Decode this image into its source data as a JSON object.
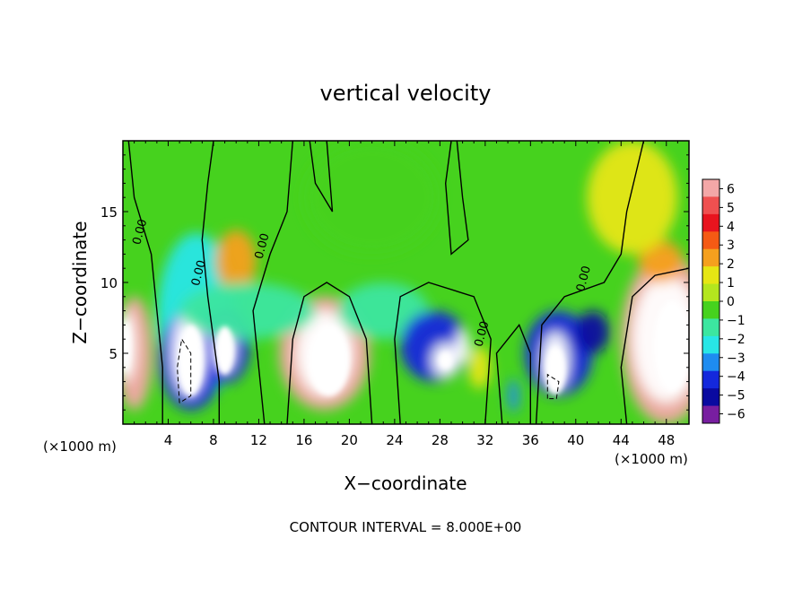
{
  "chart_data": {
    "type": "heatmap",
    "title": "vertical velocity",
    "xlabel": "X−coordinate",
    "ylabel": "Z−coordinate",
    "x_unit_left": "(×1000 m)",
    "x_unit_right": "(×1000 m)",
    "xlim": [
      0,
      50
    ],
    "ylim": [
      0,
      20
    ],
    "xticks": [
      4,
      8,
      12,
      16,
      20,
      24,
      28,
      32,
      36,
      40,
      44,
      48
    ],
    "yticks": [
      5,
      10,
      15
    ],
    "colorbar": {
      "ticks": [
        "6",
        "5",
        "4",
        "3",
        "2",
        "1",
        "0",
        "−1",
        "−2",
        "−3",
        "−4",
        "−5",
        "−6"
      ],
      "colors": [
        "#f3a7a7",
        "#ef5050",
        "#e8141e",
        "#f55a14",
        "#f5a01e",
        "#e6e614",
        "#b4e61e",
        "#46d21e",
        "#3ce6a0",
        "#28e6e6",
        "#1e8cf0",
        "#1428dc",
        "#0a0aa0",
        "#781ea0"
      ]
    },
    "contour_labels": [
      {
        "text": "0.00",
        "x": 1.8,
        "z": 13.5
      },
      {
        "text": "0.00",
        "x": 7.0,
        "z": 10.6
      },
      {
        "text": "0.00",
        "x": 12.6,
        "z": 12.5
      },
      {
        "text": "0.00",
        "x": 32.0,
        "z": 6.3
      },
      {
        "text": "0.00",
        "x": 41.0,
        "z": 10.2
      }
    ],
    "cells": [
      {
        "x": 1.0,
        "z": 5.0,
        "rx": 1.6,
        "rz": 4.0,
        "v": 6
      },
      {
        "x": 0.3,
        "z": 5.5,
        "rx": 0.8,
        "rz": 2.5,
        "v": 9
      },
      {
        "x": 6.5,
        "z": 7.5,
        "rx": 3.5,
        "rz": 6.0,
        "v": -3
      },
      {
        "x": 6.0,
        "z": 4.5,
        "rx": 2.8,
        "rz": 3.5,
        "v": -5
      },
      {
        "x": 5.8,
        "z": 5.0,
        "rx": 1.5,
        "rz": 3.0,
        "v": -7
      },
      {
        "x": 9.2,
        "z": 5.5,
        "rx": 2.0,
        "rz": 2.6,
        "v": -5
      },
      {
        "x": 9.0,
        "z": 5.5,
        "rx": 0.9,
        "rz": 1.8,
        "v": -7
      },
      {
        "x": 10.0,
        "z": 11.5,
        "rx": 1.8,
        "rz": 2.2,
        "v": 2.5
      },
      {
        "x": 17.8,
        "z": 5.0,
        "rx": 4.0,
        "rz": 4.0,
        "v": 6
      },
      {
        "x": 17.8,
        "z": 5.0,
        "rx": 2.5,
        "rz": 3.0,
        "v": 8
      },
      {
        "x": 11.0,
        "z": 8.0,
        "rx": 6.0,
        "rz": 2.0,
        "v": -1.8
      },
      {
        "x": 23.0,
        "z": 8.0,
        "rx": 4.0,
        "rz": 2.0,
        "v": -1.8
      },
      {
        "x": 27.5,
        "z": 5.5,
        "rx": 3.0,
        "rz": 2.5,
        "v": -4.5
      },
      {
        "x": 28.5,
        "z": 4.5,
        "rx": 1.2,
        "rz": 1.2,
        "v": -7
      },
      {
        "x": 30.0,
        "z": 5.5,
        "rx": 0.6,
        "rz": 1.2,
        "v": -7
      },
      {
        "x": 31.5,
        "z": 4.0,
        "rx": 1.0,
        "rz": 1.5,
        "v": 1.5
      },
      {
        "x": 34.5,
        "z": 2.0,
        "rx": 0.5,
        "rz": 1.2,
        "v": -4
      },
      {
        "x": 38.5,
        "z": 5.0,
        "rx": 3.0,
        "rz": 3.0,
        "v": -5
      },
      {
        "x": 38.2,
        "z": 4.5,
        "rx": 1.2,
        "rz": 2.0,
        "v": -7
      },
      {
        "x": 41.5,
        "z": 6.5,
        "rx": 1.5,
        "rz": 1.5,
        "v": -6
      },
      {
        "x": 48.0,
        "z": 6.0,
        "rx": 4.0,
        "rz": 6.0,
        "v": 6
      },
      {
        "x": 48.0,
        "z": 6.0,
        "rx": 3.0,
        "rz": 4.5,
        "v": 8
      },
      {
        "x": 47.5,
        "z": 11.5,
        "rx": 2.0,
        "rz": 1.5,
        "v": 2.5
      },
      {
        "x": 45.0,
        "z": 16.0,
        "rx": 4.0,
        "rz": 4.0,
        "v": 0.8
      },
      {
        "x": 22.0,
        "z": 16.0,
        "rx": 6.0,
        "rz": 4.0,
        "v": -1.0
      }
    ],
    "contour_segments": [
      [
        [
          3.5,
          0
        ],
        [
          3.5,
          4
        ],
        [
          3.0,
          8
        ],
        [
          2.5,
          12
        ],
        [
          1.0,
          16
        ],
        [
          0.5,
          20
        ]
      ],
      [
        [
          8.5,
          0
        ],
        [
          8.5,
          3
        ],
        [
          8.0,
          6
        ],
        [
          7.5,
          9
        ],
        [
          7.0,
          13
        ],
        [
          7.5,
          17
        ],
        [
          8.0,
          20
        ]
      ],
      [
        [
          12.5,
          0
        ],
        [
          12.0,
          4
        ],
        [
          11.5,
          8
        ],
        [
          13.0,
          12
        ],
        [
          14.5,
          15
        ],
        [
          15.0,
          20
        ]
      ],
      [
        [
          14.5,
          0
        ],
        [
          15.0,
          6
        ],
        [
          16.0,
          9
        ],
        [
          18.0,
          10
        ],
        [
          20.0,
          9
        ],
        [
          21.5,
          6
        ],
        [
          22.0,
          0
        ]
      ],
      [
        [
          24.5,
          0
        ],
        [
          24.0,
          6
        ],
        [
          24.5,
          9
        ],
        [
          27.0,
          10
        ],
        [
          31.0,
          9
        ],
        [
          32.5,
          6
        ],
        [
          32.0,
          0
        ]
      ],
      [
        [
          33.5,
          0
        ],
        [
          33.0,
          5
        ],
        [
          35.0,
          7
        ],
        [
          36.0,
          5
        ],
        [
          36.0,
          0
        ]
      ],
      [
        [
          36.5,
          0
        ],
        [
          37.0,
          7
        ],
        [
          39.0,
          9
        ],
        [
          42.5,
          10
        ],
        [
          44.0,
          12
        ],
        [
          44.5,
          15
        ],
        [
          46.0,
          20
        ]
      ],
      [
        [
          44.5,
          0
        ],
        [
          44.0,
          4
        ],
        [
          45.0,
          9
        ],
        [
          47.0,
          10.5
        ],
        [
          50.0,
          11.0
        ]
      ],
      [
        [
          29.5,
          20
        ],
        [
          30.0,
          16
        ],
        [
          30.5,
          13
        ],
        [
          29.0,
          12
        ],
        [
          28.5,
          17
        ],
        [
          29.0,
          20
        ]
      ],
      [
        [
          16.5,
          20
        ],
        [
          17.0,
          17
        ],
        [
          18.5,
          15
        ],
        [
          18.0,
          20
        ]
      ]
    ],
    "dashed_segments": [
      [
        [
          5.0,
          1.5
        ],
        [
          4.8,
          4
        ],
        [
          5.2,
          6
        ],
        [
          6.0,
          5
        ],
        [
          6.0,
          2
        ],
        [
          5.0,
          1.5
        ]
      ],
      [
        [
          37.5,
          1.8
        ],
        [
          37.5,
          3.5
        ],
        [
          38.5,
          3.0
        ],
        [
          38.3,
          1.8
        ],
        [
          37.5,
          1.8
        ]
      ]
    ],
    "zero_white_cells": [
      {
        "x": 6.0,
        "z": 4.5,
        "rx": 1.1,
        "rz": 2.5
      },
      {
        "x": 9.0,
        "z": 5.2,
        "rx": 0.8,
        "rz": 1.7
      },
      {
        "x": 18.2,
        "z": 4.5,
        "rx": 1.8,
        "rz": 2.5
      },
      {
        "x": 38.2,
        "z": 3.8,
        "rx": 0.9,
        "rz": 1.7
      },
      {
        "x": 48.5,
        "z": 5.5,
        "rx": 1.6,
        "rz": 3.2
      },
      {
        "x": 0.3,
        "z": 5.5,
        "rx": 0.4,
        "rz": 1.8
      },
      {
        "x": 28.5,
        "z": 4.5,
        "rx": 0.6,
        "rz": 0.6
      }
    ],
    "footer": "CONTOUR INTERVAL = 8.000E+00"
  }
}
